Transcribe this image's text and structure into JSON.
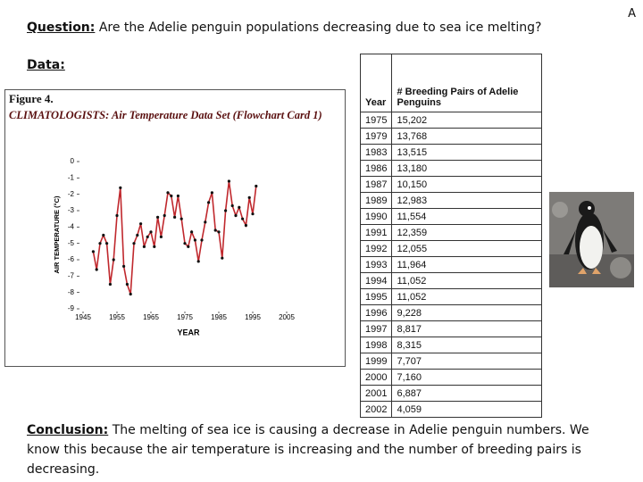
{
  "corner_letter": "A",
  "question": {
    "label": "Question:",
    "text": "Are the Adelie penguin populations decreasing due to sea ice melting?"
  },
  "data_label": "Data:",
  "figure": {
    "label": "Figure 4.",
    "caption": "CLIMATOLOGISTS: Air Temperature Data Set (Flowchart Card 1)"
  },
  "chart_data": {
    "type": "line",
    "x_label": "YEAR",
    "y_label": "AIR TEMPERATURE (°C)",
    "x": [
      1948,
      1949,
      1950,
      1951,
      1952,
      1953,
      1954,
      1955,
      1956,
      1957,
      1958,
      1959,
      1960,
      1961,
      1962,
      1963,
      1964,
      1965,
      1966,
      1967,
      1968,
      1969,
      1970,
      1971,
      1972,
      1973,
      1974,
      1975,
      1976,
      1977,
      1978,
      1979,
      1980,
      1981,
      1982,
      1983,
      1984,
      1985,
      1986,
      1987,
      1988,
      1989,
      1990,
      1991,
      1992,
      1993,
      1994,
      1995,
      1996
    ],
    "series": [
      {
        "color": "#c0282d",
        "values": [
          -5.5,
          -6.6,
          -5.0,
          -4.5,
          -5.0,
          -7.5,
          -6.0,
          -3.3,
          -1.6,
          -6.4,
          -7.5,
          -8.1,
          -5.0,
          -4.5,
          -3.8,
          -5.2,
          -4.6,
          -4.3,
          -5.2,
          -3.4,
          -4.6,
          -3.3,
          -1.9,
          -2.1,
          -3.4,
          -2.1,
          -3.5,
          -5.0,
          -5.2,
          -4.3,
          -4.8,
          -6.1,
          -4.8,
          -3.7,
          -2.5,
          -1.9,
          -4.2,
          -4.3,
          -5.9,
          -3.0,
          -1.2,
          -2.7,
          -3.3,
          -2.8,
          -3.5,
          -3.9,
          -2.2,
          -3.2,
          -1.5
        ]
      }
    ],
    "xlim": [
      1945,
      2005
    ],
    "xticks": [
      1945,
      1955,
      1965,
      1975,
      1985,
      1995,
      2005
    ],
    "ylim": [
      -9,
      0
    ],
    "yticks": [
      0,
      -1,
      -2,
      -3,
      -4,
      -5,
      -6,
      -7,
      -8,
      -9
    ]
  },
  "table": {
    "header": [
      "Year",
      "# Breeding Pairs of Adelie Penguins"
    ],
    "rows": [
      [
        "1975",
        "15,202"
      ],
      [
        "1979",
        "13,768"
      ],
      [
        "1983",
        "13,515"
      ],
      [
        "1986",
        "13,180"
      ],
      [
        "1987",
        "10,150"
      ],
      [
        "1989",
        "12,983"
      ],
      [
        "1990",
        "11,554"
      ],
      [
        "1991",
        "12,359"
      ],
      [
        "1992",
        "12,055"
      ],
      [
        "1993",
        "11,964"
      ],
      [
        "1994",
        "11,052"
      ],
      [
        "1995",
        "11,052"
      ],
      [
        "1996",
        "9,228"
      ],
      [
        "1997",
        "8,817"
      ],
      [
        "1998",
        "8,315"
      ],
      [
        "1999",
        "7,707"
      ],
      [
        "2000",
        "7,160"
      ],
      [
        "2001",
        "6,887"
      ],
      [
        "2002",
        "4,059"
      ]
    ]
  },
  "conclusion": {
    "label": "Conclusion:",
    "text": "The melting of sea ice is causing a decrease in Adelie penguin numbers. We know this because the air temperature is increasing and the number of breeding pairs is decreasing."
  }
}
